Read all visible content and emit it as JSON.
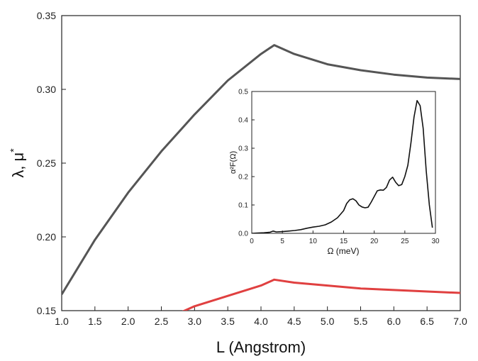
{
  "chart_data": [
    {
      "type": "line",
      "xlabel": "L  (Angstrom)",
      "ylabel_main": "λ, μ",
      "ylabel_sup": "*",
      "xlim": [
        1.0,
        7.0
      ],
      "ylim": [
        0.15,
        0.35
      ],
      "xticks": [
        "1.0",
        "1.5",
        "2.0",
        "2.5",
        "3.0",
        "3.5",
        "4.0",
        "4.5",
        "5.0",
        "5.5",
        "6.0",
        "6.5",
        "7.0"
      ],
      "yticks": [
        "0.15",
        "0.20",
        "0.25",
        "0.30",
        "0.35"
      ],
      "grid": false,
      "series": [
        {
          "color": "#555555",
          "x": [
            1.0,
            1.5,
            2.0,
            2.5,
            3.0,
            3.5,
            4.0,
            4.2,
            4.5,
            5.0,
            5.5,
            6.0,
            6.5,
            7.0
          ],
          "y": [
            0.161,
            0.198,
            0.23,
            0.258,
            0.283,
            0.306,
            0.324,
            0.33,
            0.324,
            0.317,
            0.313,
            0.31,
            0.308,
            0.307
          ]
        },
        {
          "color": "#e04040",
          "x": [
            2.8,
            3.0,
            3.5,
            4.0,
            4.2,
            4.5,
            5.0,
            5.5,
            6.0,
            6.5,
            7.0
          ],
          "y": [
            0.149,
            0.153,
            0.16,
            0.167,
            0.171,
            0.169,
            0.167,
            0.165,
            0.164,
            0.163,
            0.162
          ]
        }
      ]
    },
    {
      "type": "line",
      "inset": true,
      "xlabel": "Ω  (meV)",
      "ylabel": "α²F(Ω)",
      "xlim": [
        0,
        30
      ],
      "ylim": [
        0,
        0.5
      ],
      "xticks": [
        "0",
        "5",
        "10",
        "15",
        "20",
        "25",
        "30"
      ],
      "yticks": [
        "0.0",
        "0.1",
        "0.2",
        "0.3",
        "0.4",
        "0.5"
      ],
      "grid": false,
      "series": [
        {
          "color": "#111111",
          "x": [
            0,
            1,
            2,
            3,
            3.5,
            4,
            5,
            6,
            7,
            8,
            9,
            10,
            11,
            12,
            13,
            14,
            15,
            15.5,
            16,
            16.5,
            17,
            17.5,
            18,
            18.5,
            19,
            19.5,
            20,
            20.5,
            21,
            21.5,
            22,
            22.5,
            23,
            23.5,
            24,
            24.5,
            25,
            25.5,
            26,
            26.5,
            27,
            27.5,
            28,
            28.5,
            29,
            29.5
          ],
          "y": [
            0,
            0.001,
            0.002,
            0.004,
            0.008,
            0.005,
            0.006,
            0.008,
            0.01,
            0.013,
            0.018,
            0.022,
            0.025,
            0.03,
            0.04,
            0.055,
            0.08,
            0.105,
            0.118,
            0.122,
            0.115,
            0.1,
            0.093,
            0.09,
            0.092,
            0.11,
            0.13,
            0.15,
            0.153,
            0.152,
            0.162,
            0.188,
            0.198,
            0.18,
            0.168,
            0.172,
            0.2,
            0.24,
            0.32,
            0.41,
            0.468,
            0.45,
            0.37,
            0.22,
            0.1,
            0.02
          ]
        }
      ]
    }
  ]
}
